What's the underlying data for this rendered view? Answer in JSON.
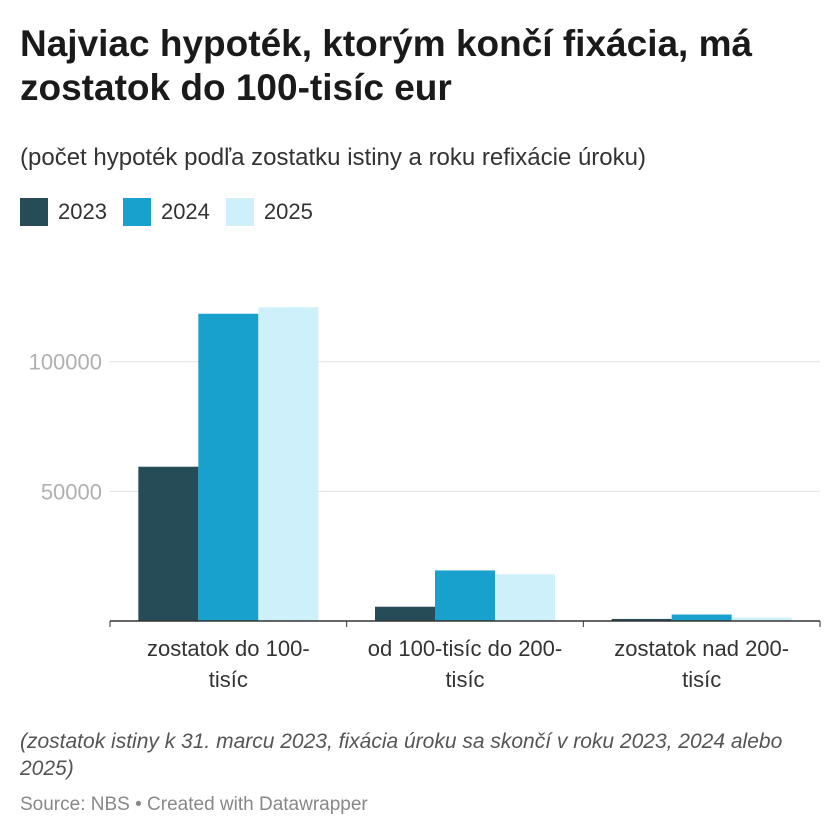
{
  "title": "Najviac hypoték, ktorým končí fixácia, má zostatok do 100-tisíc eur",
  "subtitle": "(počet hypoték podľa zostatku istiny a roku refixácie úroku)",
  "notes": "(zostatok istiny k 31. marcu 2023, fixácia úroku sa skončí v roku 2023, 2024 alebo 2025)",
  "source": "Source: NBS • Created with Datawrapper",
  "chart_data": {
    "type": "bar",
    "title": "Najviac hypoték, ktorým končí fixácia, má zostatok do 100-tisíc eur",
    "subtitle": "(počet hypoték podľa zostatku istiny a roku refixácie úroku)",
    "categories": [
      [
        "zostatok do 100-",
        "tisíc"
      ],
      [
        "od 100-tisíc do 200-",
        "tisíc"
      ],
      [
        "zostatok nad 200-",
        "tisíc"
      ]
    ],
    "series": [
      {
        "name": "2023",
        "color": "#264c57",
        "values": [
          59500,
          5500,
          800
        ]
      },
      {
        "name": "2024",
        "color": "#18a1cd",
        "values": [
          118500,
          19500,
          2500
        ]
      },
      {
        "name": "2025",
        "color": "#cdf0fa",
        "values": [
          121000,
          18000,
          1300
        ]
      }
    ],
    "yticks": [
      50000,
      100000
    ],
    "ylim": [
      0,
      140000
    ],
    "grid": true,
    "legend": "top-left"
  }
}
